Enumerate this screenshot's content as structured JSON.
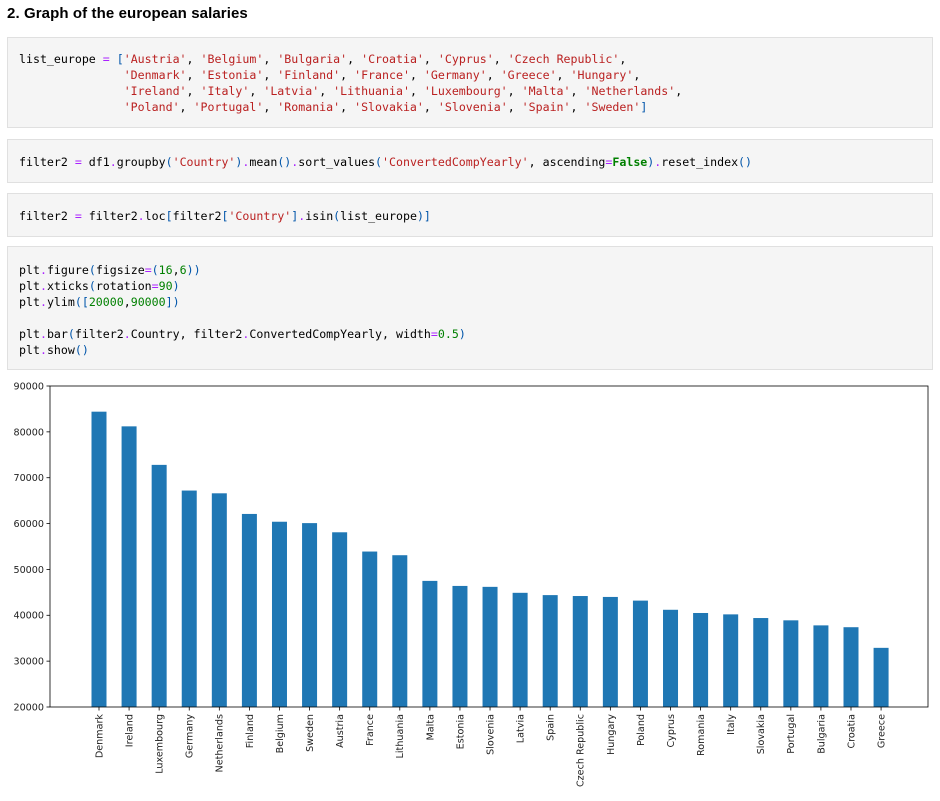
{
  "heading": "2. Graph of the european salaries",
  "cells": [
    {
      "name": "cell-list-europe",
      "lines": [
        [
          [
            "list_europe ",
            ""
          ],
          [
            "=",
            "op"
          ],
          [
            " ",
            ""
          ],
          [
            "[",
            "br"
          ],
          [
            "'Austria'",
            "str"
          ],
          [
            ", ",
            ""
          ],
          [
            "'Belgium'",
            "str"
          ],
          [
            ", ",
            ""
          ],
          [
            "'Bulgaria'",
            "str"
          ],
          [
            ", ",
            ""
          ],
          [
            "'Croatia'",
            "str"
          ],
          [
            ", ",
            ""
          ],
          [
            "'Cyprus'",
            "str"
          ],
          [
            ", ",
            ""
          ],
          [
            "'Czech Republic'",
            "str"
          ],
          [
            ",",
            ""
          ]
        ],
        [
          [
            "               ",
            ""
          ],
          [
            "'Denmark'",
            "str"
          ],
          [
            ", ",
            ""
          ],
          [
            "'Estonia'",
            "str"
          ],
          [
            ", ",
            ""
          ],
          [
            "'Finland'",
            "str"
          ],
          [
            ", ",
            ""
          ],
          [
            "'France'",
            "str"
          ],
          [
            ", ",
            ""
          ],
          [
            "'Germany'",
            "str"
          ],
          [
            ", ",
            ""
          ],
          [
            "'Greece'",
            "str"
          ],
          [
            ", ",
            ""
          ],
          [
            "'Hungary'",
            "str"
          ],
          [
            ",",
            ""
          ]
        ],
        [
          [
            "               ",
            ""
          ],
          [
            "'Ireland'",
            "str"
          ],
          [
            ", ",
            ""
          ],
          [
            "'Italy'",
            "str"
          ],
          [
            ", ",
            ""
          ],
          [
            "'Latvia'",
            "str"
          ],
          [
            ", ",
            ""
          ],
          [
            "'Lithuania'",
            "str"
          ],
          [
            ", ",
            ""
          ],
          [
            "'Luxembourg'",
            "str"
          ],
          [
            ", ",
            ""
          ],
          [
            "'Malta'",
            "str"
          ],
          [
            ", ",
            ""
          ],
          [
            "'Netherlands'",
            "str"
          ],
          [
            ",",
            ""
          ]
        ],
        [
          [
            "               ",
            ""
          ],
          [
            "'Poland'",
            "str"
          ],
          [
            ", ",
            ""
          ],
          [
            "'Portugal'",
            "str"
          ],
          [
            ", ",
            ""
          ],
          [
            "'Romania'",
            "str"
          ],
          [
            ", ",
            ""
          ],
          [
            "'Slovakia'",
            "str"
          ],
          [
            ", ",
            ""
          ],
          [
            "'Slovenia'",
            "str"
          ],
          [
            ", ",
            ""
          ],
          [
            "'Spain'",
            "str"
          ],
          [
            ", ",
            ""
          ],
          [
            "'Sweden'",
            "str"
          ],
          [
            "]",
            "br"
          ]
        ]
      ]
    },
    {
      "name": "cell-filter2-groupby",
      "lines": [
        [
          [
            "filter2 ",
            ""
          ],
          [
            "=",
            "op"
          ],
          [
            " df1",
            ""
          ],
          [
            ".",
            "op"
          ],
          [
            "groupby",
            ""
          ],
          [
            "(",
            "br"
          ],
          [
            "'Country'",
            "str"
          ],
          [
            ")",
            "br"
          ],
          [
            ".",
            "op"
          ],
          [
            "mean",
            ""
          ],
          [
            "()",
            "br"
          ],
          [
            ".",
            "op"
          ],
          [
            "sort_values",
            ""
          ],
          [
            "(",
            "br"
          ],
          [
            "'ConvertedCompYearly'",
            "str"
          ],
          [
            ", ascending",
            ""
          ],
          [
            "=",
            "op"
          ],
          [
            "False",
            "kw"
          ],
          [
            ")",
            "br"
          ],
          [
            ".",
            "op"
          ],
          [
            "reset_index",
            ""
          ],
          [
            "()",
            "br"
          ]
        ]
      ]
    },
    {
      "name": "cell-filter2-loc",
      "lines": [
        [
          [
            "filter2 ",
            ""
          ],
          [
            "=",
            "op"
          ],
          [
            " filter2",
            ""
          ],
          [
            ".",
            "op"
          ],
          [
            "loc",
            ""
          ],
          [
            "[",
            "br"
          ],
          [
            "filter2",
            ""
          ],
          [
            "[",
            "br"
          ],
          [
            "'Country'",
            "str"
          ],
          [
            "]",
            "br"
          ],
          [
            ".",
            "op"
          ],
          [
            "isin",
            ""
          ],
          [
            "(",
            "br"
          ],
          [
            "list_europe",
            ""
          ],
          [
            ")",
            "br"
          ],
          [
            "]",
            "br"
          ]
        ]
      ]
    },
    {
      "name": "cell-plot",
      "lines": [
        [
          [
            "plt",
            ""
          ],
          [
            ".",
            "op"
          ],
          [
            "figure",
            ""
          ],
          [
            "(",
            "br"
          ],
          [
            "figsize",
            ""
          ],
          [
            "=",
            "op"
          ],
          [
            "(",
            "br"
          ],
          [
            "16",
            "num"
          ],
          [
            ",",
            ""
          ],
          [
            "6",
            "num"
          ],
          [
            "))",
            "br"
          ]
        ],
        [
          [
            "plt",
            ""
          ],
          [
            ".",
            "op"
          ],
          [
            "xticks",
            ""
          ],
          [
            "(",
            "br"
          ],
          [
            "rotation",
            ""
          ],
          [
            "=",
            "op"
          ],
          [
            "90",
            "num"
          ],
          [
            ")",
            "br"
          ]
        ],
        [
          [
            "plt",
            ""
          ],
          [
            ".",
            "op"
          ],
          [
            "ylim",
            ""
          ],
          [
            "([",
            "br"
          ],
          [
            "20000",
            "num"
          ],
          [
            ",",
            ""
          ],
          [
            "90000",
            "num"
          ],
          [
            "])",
            "br"
          ]
        ],
        [
          [
            "",
            ""
          ]
        ],
        [
          [
            "plt",
            ""
          ],
          [
            ".",
            "op"
          ],
          [
            "bar",
            ""
          ],
          [
            "(",
            "br"
          ],
          [
            "filter2",
            ""
          ],
          [
            ".",
            "op"
          ],
          [
            "Country, filter2",
            ""
          ],
          [
            ".",
            "op"
          ],
          [
            "ConvertedCompYearly, width",
            ""
          ],
          [
            "=",
            "op"
          ],
          [
            "0.5",
            "num"
          ],
          [
            ")",
            "br"
          ]
        ],
        [
          [
            "plt",
            ""
          ],
          [
            ".",
            "op"
          ],
          [
            "show",
            ""
          ],
          [
            "()",
            "br"
          ]
        ]
      ]
    }
  ],
  "chart_data": {
    "type": "bar",
    "categories": [
      "Denmark",
      "Ireland",
      "Luxembourg",
      "Germany",
      "Netherlands",
      "Finland",
      "Belgium",
      "Sweden",
      "Austria",
      "France",
      "Lithuania",
      "Malta",
      "Estonia",
      "Slovenia",
      "Latvia",
      "Spain",
      "Czech Republic",
      "Hungary",
      "Poland",
      "Cyprus",
      "Romania",
      "Italy",
      "Slovakia",
      "Portugal",
      "Bulgaria",
      "Croatia",
      "Greece"
    ],
    "values": [
      84400,
      81200,
      72800,
      67200,
      66600,
      62100,
      60400,
      60100,
      58100,
      53900,
      53100,
      47500,
      46400,
      46200,
      44900,
      44400,
      44200,
      44000,
      43200,
      41200,
      40500,
      40200,
      39400,
      38900,
      37800,
      37400,
      32900
    ],
    "ylim": [
      20000,
      90000
    ],
    "yticks": [
      20000,
      30000,
      40000,
      50000,
      60000,
      70000,
      80000,
      90000
    ],
    "bar_color": "#1f77b4",
    "title": "",
    "xlabel": "",
    "ylabel": ""
  }
}
